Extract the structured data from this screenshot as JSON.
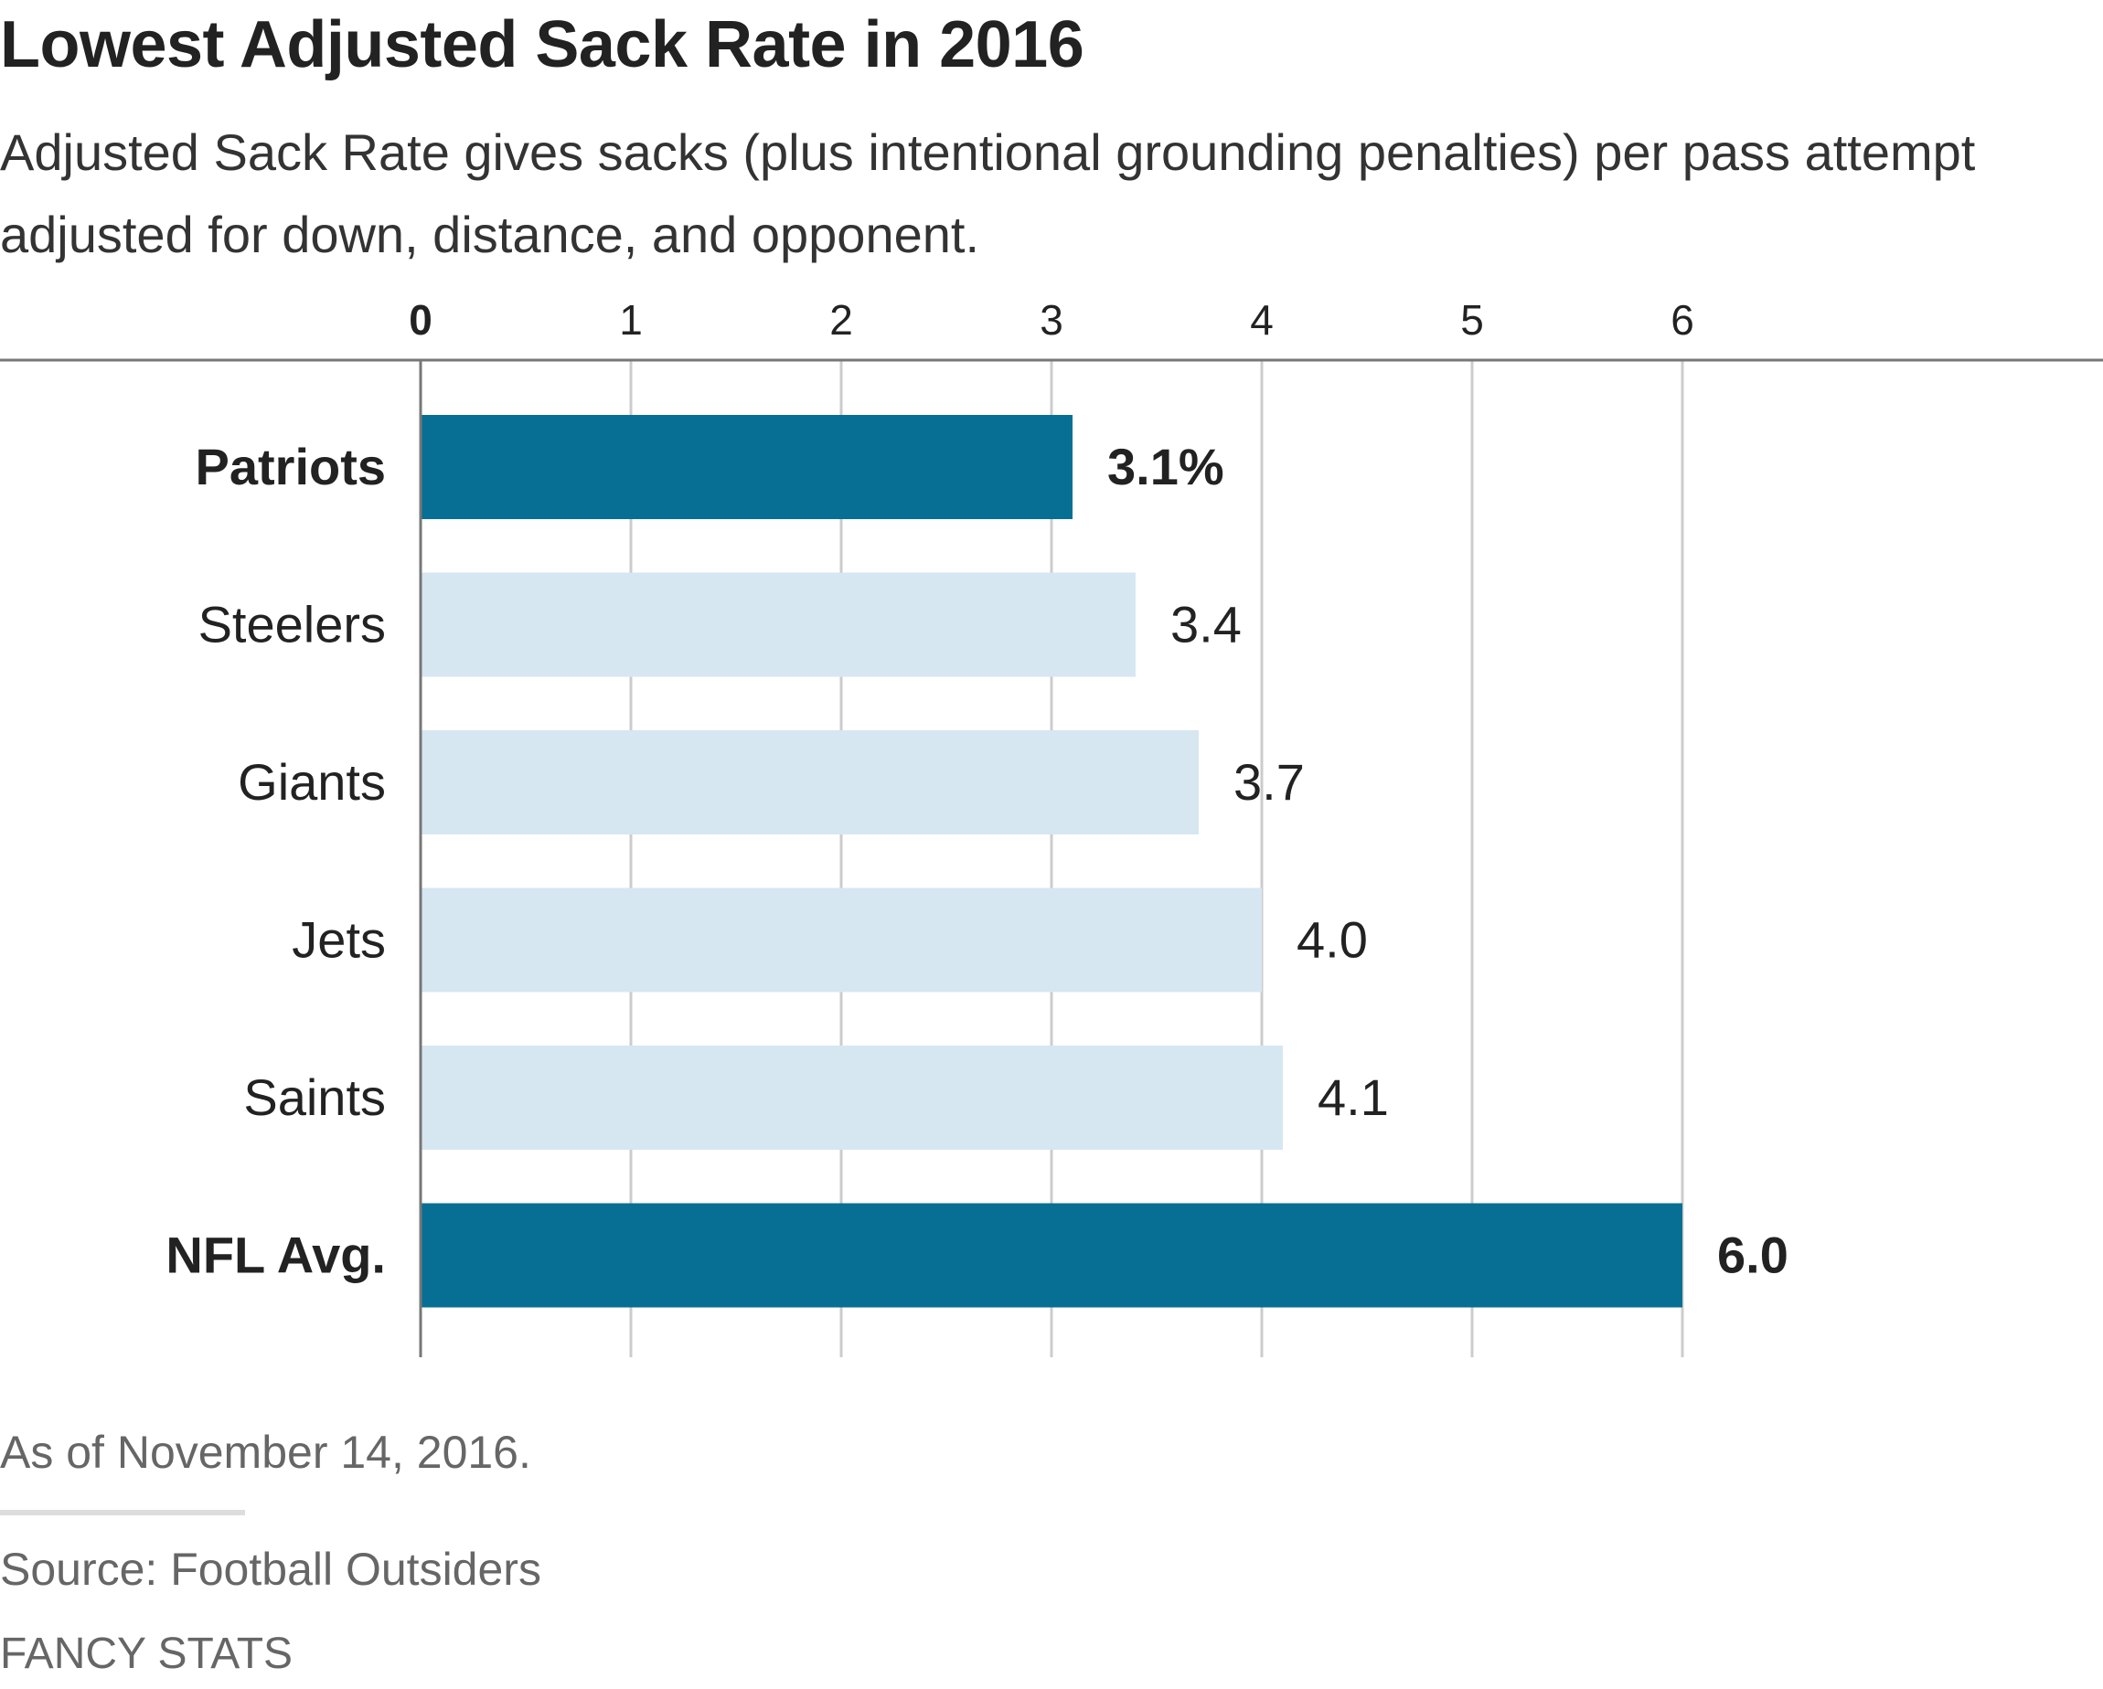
{
  "header": {
    "title": "Lowest Adjusted Sack Rate in 2016",
    "subtitle": "Adjusted Sack Rate gives sacks (plus intentional grounding penalties) per pass attempt adjusted for down, distance, and opponent."
  },
  "chart_data": {
    "type": "bar",
    "orientation": "horizontal",
    "categories": [
      "Patriots",
      "Steelers",
      "Giants",
      "Jets",
      "Saints",
      "NFL Avg."
    ],
    "values": [
      3.1,
      3.4,
      3.7,
      4.0,
      4.1,
      6.0
    ],
    "value_labels": [
      "3.1%",
      "3.4",
      "3.7",
      "4.0",
      "4.1",
      "6.0"
    ],
    "highlighted": [
      true,
      false,
      false,
      false,
      false,
      true
    ],
    "xlim": [
      0,
      6
    ],
    "x_ticks": [
      "0",
      "1",
      "2",
      "3",
      "4",
      "5",
      "6"
    ],
    "grid": true,
    "colors": {
      "highlight": "#066f93",
      "normal": "#d6e7f2",
      "grid": "#cccccc",
      "axis": "#777777"
    }
  },
  "footer": {
    "note": "As of November 14, 2016.",
    "source": "Source: Football Outsiders",
    "credit": "FANCY STATS"
  }
}
